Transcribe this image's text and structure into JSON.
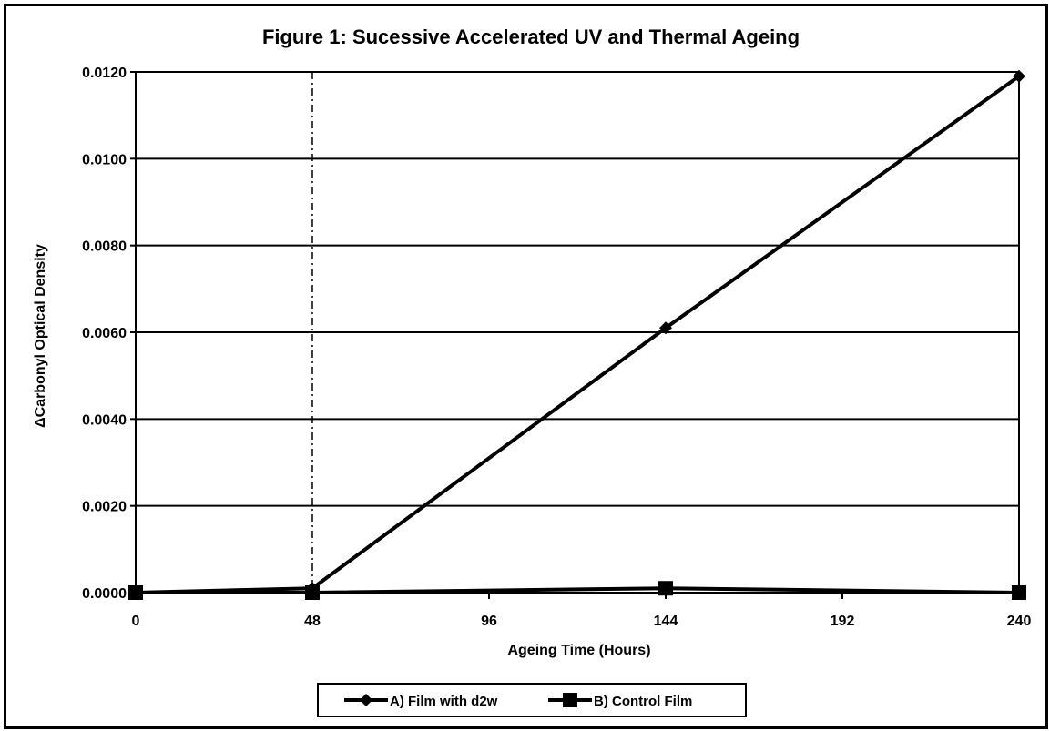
{
  "chart_data": {
    "type": "line",
    "title": "Figure 1: Sucessive Accelerated UV and Thermal Ageing",
    "xlabel": "Ageing Time (Hours)",
    "ylabel": "ΔCarbonyl Optical Density",
    "x": [
      0,
      48,
      144,
      240
    ],
    "x_ticks": [
      "0",
      "48",
      "96",
      "144",
      "192",
      "240"
    ],
    "y_ticks": [
      "0.0000",
      "0.0020",
      "0.0040",
      "0.0060",
      "0.0080",
      "0.0100",
      "0.0120"
    ],
    "xlim": [
      0,
      240
    ],
    "ylim": [
      0,
      0.012
    ],
    "grid": "horizontal",
    "vertical_reference_line_x": 48,
    "legend_position": "bottom",
    "series": [
      {
        "name": "A) Film with d2w",
        "marker": "diamond",
        "values": [
          0.0,
          0.0001,
          0.0061,
          0.0119
        ]
      },
      {
        "name": "B) Control Film",
        "marker": "square",
        "values": [
          0.0,
          0.0,
          0.0001,
          0.0
        ]
      }
    ],
    "colors": {
      "line": "#000000",
      "grid": "#000000",
      "background": "#ffffff"
    }
  }
}
